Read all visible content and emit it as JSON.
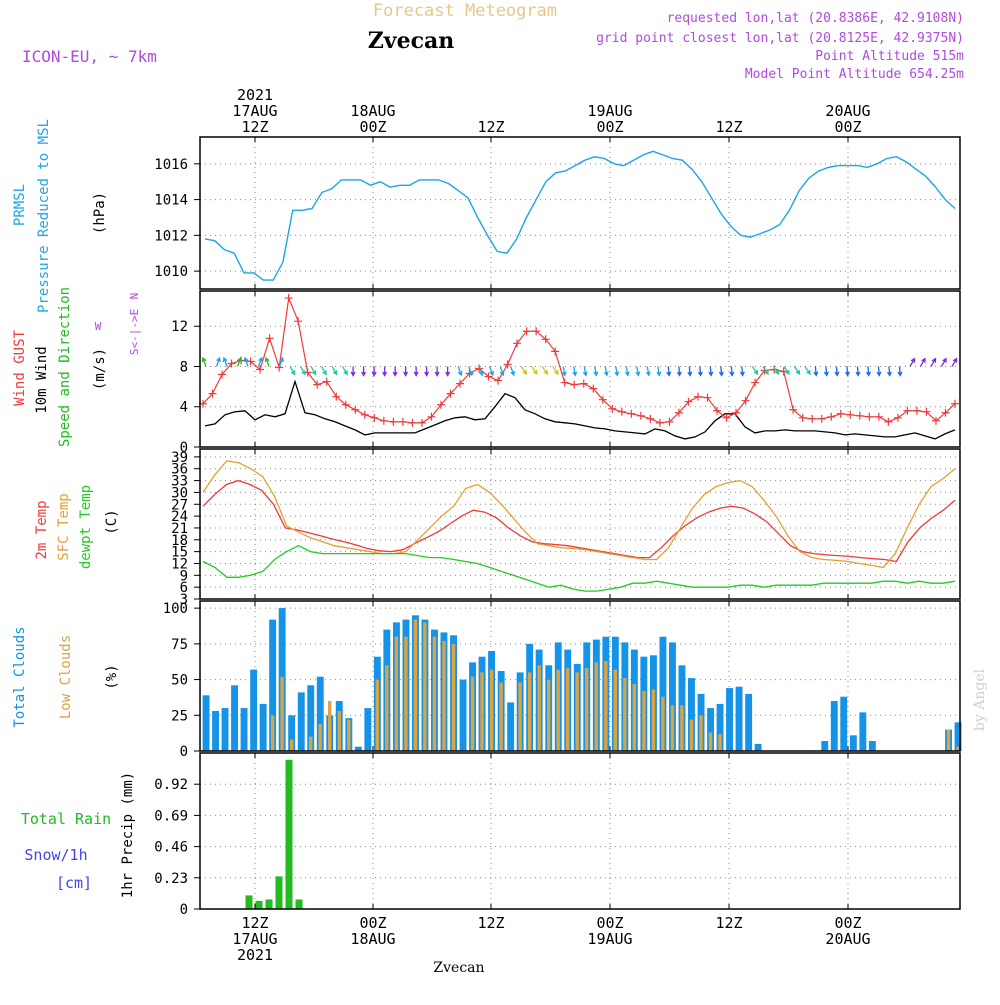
{
  "header": {
    "product": "Forecast Meteogram",
    "location": "Zvecan",
    "model": "ICON-EU, ~ 7km",
    "requested": "requested lon,lat (20.8386E, 42.9108N)",
    "gridpoint": "grid point closest lon,lat (20.8125E, 42.9375N)",
    "point_alt": "Point Altitude 515m",
    "model_alt": "Model Point Altitude 654.25m",
    "watermark": "by Angel",
    "footer_location": "Zvecan"
  },
  "colors": {
    "pressure": "#1ea4e6",
    "gust": "#ee3b3b",
    "wind": "#000000",
    "direction": "#22bb22",
    "t2m": "#ee3b3b",
    "sfc": "#e6a030",
    "dewpt": "#22cc22",
    "total_clouds": "#1493e8",
    "low_clouds": "#d9a441",
    "rain": "#22bb22",
    "snow": "#4444ee",
    "title_tan": "#e6c88a",
    "purple": "#b04ae0"
  },
  "time_axis": {
    "top_labels": [
      {
        "lines": [
          "2021",
          "17AUG",
          "12Z"
        ]
      },
      {
        "lines": [
          "18AUG",
          "00Z"
        ]
      },
      {
        "lines": [
          "12Z"
        ]
      },
      {
        "lines": [
          "19AUG",
          "00Z"
        ]
      },
      {
        "lines": [
          "12Z"
        ]
      },
      {
        "lines": [
          "20AUG",
          "00Z"
        ]
      }
    ],
    "bottom_labels": [
      {
        "lines": [
          "12Z",
          "17AUG",
          "2021"
        ]
      },
      {
        "lines": [
          "00Z",
          "18AUG"
        ]
      },
      {
        "lines": [
          "12Z"
        ]
      },
      {
        "lines": [
          "00Z",
          "19AUG"
        ]
      },
      {
        "lines": [
          "12Z"
        ]
      },
      {
        "lines": [
          "00Z",
          "20AUG"
        ]
      }
    ]
  },
  "chart_data": [
    {
      "type": "line",
      "ylabels": [
        "PRMSL",
        "Pressure Reduced to MSL",
        "(hPa)"
      ],
      "ylim": [
        1009,
        1017.5
      ],
      "yticks": [
        1010,
        1012,
        1014,
        1016
      ],
      "series": [
        {
          "values": [
            1011.8,
            1011.7,
            1011.2,
            1011.0,
            1009.9,
            1009.9,
            1009.5,
            1009.5,
            1010.5,
            1013.4,
            1013.4,
            1013.5,
            1014.4,
            1014.6,
            1015.1,
            1015.1,
            1015.1,
            1014.8,
            1015.0,
            1014.7,
            1014.8,
            1014.8,
            1015.1,
            1015.1,
            1015.1,
            1014.9,
            1014.5,
            1014.1,
            1013.0,
            1012.0,
            1011.1,
            1011.0,
            1011.8,
            1013.0,
            1014.0,
            1015.0,
            1015.5,
            1015.6,
            1015.9,
            1016.2,
            1016.4,
            1016.3,
            1016.0,
            1015.9,
            1016.2,
            1016.5,
            1016.7,
            1016.5,
            1016.3,
            1016.2,
            1015.7,
            1015.0,
            1014.1,
            1013.2,
            1012.5,
            1012.0,
            1011.9,
            1012.1,
            1012.3,
            1012.6,
            1013.4,
            1014.5,
            1015.2,
            1015.6,
            1015.8,
            1015.9,
            1015.9,
            1015.9,
            1015.8,
            1016.0,
            1016.3,
            1016.4,
            1016.1,
            1015.7,
            1015.3,
            1014.7,
            1014.0,
            1013.5
          ]
        }
      ]
    },
    {
      "type": "line",
      "ylabels": [
        "Wind GUST",
        "10m Wind",
        "Speed and Direction",
        "(m/s)"
      ],
      "compass": [
        "N",
        "S<-|->E",
        "W"
      ],
      "ylim": [
        0,
        15.5
      ],
      "yticks": [
        0,
        4,
        8,
        12
      ],
      "series": [
        {
          "name": "Wind GUST",
          "values": [
            4.3,
            5.3,
            7.2,
            8.3,
            8.6,
            8.5,
            7.7,
            10.8,
            7.9,
            14.8,
            12.5,
            7.4,
            6.2,
            6.5,
            5.0,
            4.2,
            3.7,
            3.2,
            2.9,
            2.6,
            2.5,
            2.5,
            2.4,
            2.4,
            3.0,
            4.2,
            5.3,
            6.3,
            7.3,
            7.8,
            7.0,
            6.6,
            8.2,
            10.3,
            11.5,
            11.5,
            10.7,
            9.5,
            6.4,
            6.2,
            6.3,
            5.8,
            4.7,
            3.8,
            3.5,
            3.3,
            3.1,
            2.8,
            2.4,
            2.5,
            3.4,
            4.5,
            5.0,
            4.9,
            3.6,
            2.9,
            3.4,
            4.6,
            6.4,
            7.6,
            7.7,
            7.5,
            3.7,
            2.9,
            2.8,
            2.8,
            3.0,
            3.3,
            3.2,
            3.1,
            3.0,
            3.0,
            2.5,
            2.9,
            3.6,
            3.6,
            3.5,
            2.6,
            3.4,
            4.3
          ]
        },
        {
          "name": "10m Wind",
          "values": [
            2.1,
            2.3,
            3.2,
            3.5,
            3.6,
            2.7,
            3.2,
            3.0,
            3.3,
            6.5,
            3.4,
            3.2,
            2.8,
            2.5,
            2.1,
            1.7,
            1.2,
            1.4,
            1.4,
            1.4,
            1.4,
            1.4,
            1.8,
            2.2,
            2.6,
            2.9,
            3.0,
            2.7,
            2.8,
            4.0,
            5.3,
            4.9,
            3.7,
            3.3,
            2.8,
            2.5,
            2.4,
            2.3,
            2.1,
            1.9,
            1.8,
            1.6,
            1.5,
            1.4,
            1.3,
            1.8,
            1.6,
            1.1,
            0.8,
            1.0,
            1.5,
            2.6,
            3.3,
            3.3,
            2.0,
            1.4,
            1.6,
            1.6,
            1.7,
            1.6,
            1.6,
            1.6,
            1.5,
            1.4,
            1.2,
            1.3,
            1.2,
            1.1,
            1.0,
            1.0,
            1.2,
            1.4,
            1.1,
            0.8,
            1.3,
            1.7
          ]
        }
      ]
    },
    {
      "type": "line",
      "ylabels": [
        "2m Temp",
        "SFC Temp",
        "dewpt Temp",
        "(C)"
      ],
      "ylim": [
        3,
        41
      ],
      "yticks": [
        3,
        6,
        9,
        12,
        15,
        18,
        21,
        24,
        27,
        30,
        33,
        36,
        39
      ],
      "series": [
        {
          "name": "2m Temp",
          "values": [
            26.5,
            29.5,
            32.0,
            33.0,
            32.0,
            30.5,
            27.0,
            21.0,
            20.5,
            19.8,
            19.0,
            18.2,
            17.5,
            16.7,
            15.8,
            15.2,
            15.0,
            15.5,
            17.0,
            18.5,
            20.0,
            22.0,
            24.0,
            25.5,
            25.0,
            23.5,
            21.0,
            19.0,
            17.5,
            17.0,
            16.8,
            16.5,
            16.0,
            15.5,
            15.0,
            14.5,
            14.0,
            13.5,
            13.5,
            16.0,
            19.0,
            21.5,
            23.5,
            25.0,
            26.0,
            26.5,
            26.0,
            24.5,
            22.5,
            19.5,
            16.5,
            15.0,
            14.5,
            14.2,
            14.0,
            13.8,
            13.5,
            13.2,
            13.0,
            12.5,
            17.5,
            21.0,
            23.5,
            25.5,
            28.0
          ]
        },
        {
          "name": "SFC Temp",
          "values": [
            30.0,
            34.5,
            38.0,
            37.5,
            36.0,
            34.0,
            29.0,
            21.5,
            20.0,
            18.5,
            17.5,
            16.5,
            16.0,
            15.5,
            15.0,
            14.5,
            14.5,
            15.0,
            18.0,
            21.0,
            24.0,
            26.5,
            31.0,
            32.0,
            30.0,
            27.0,
            23.5,
            20.0,
            17.0,
            16.5,
            16.0,
            15.8,
            15.5,
            15.0,
            14.5,
            14.0,
            13.5,
            13.0,
            13.0,
            16.0,
            21.0,
            26.0,
            29.5,
            31.5,
            32.5,
            33.0,
            31.5,
            28.0,
            24.0,
            19.0,
            15.0,
            13.5,
            13.0,
            12.8,
            12.5,
            12.0,
            11.5,
            11.0,
            14.5,
            21.0,
            27.0,
            31.5,
            33.5,
            36.0
          ]
        },
        {
          "name": "dewpt Temp",
          "values": [
            12.5,
            11.0,
            8.5,
            8.5,
            9.0,
            10.0,
            13.0,
            15.0,
            16.5,
            15.0,
            14.5,
            14.5,
            14.5,
            14.5,
            14.5,
            14.5,
            14.5,
            14.5,
            14.0,
            13.5,
            13.5,
            13.0,
            12.5,
            12.0,
            11.0,
            10.0,
            9.0,
            8.0,
            7.0,
            6.0,
            6.5,
            5.5,
            5.0,
            5.0,
            5.5,
            6.0,
            7.0,
            7.0,
            7.5,
            7.0,
            6.5,
            6.0,
            6.0,
            6.0,
            6.0,
            6.5,
            6.5,
            6.0,
            6.5,
            6.5,
            6.5,
            6.5,
            7.0,
            7.0,
            7.0,
            7.0,
            7.0,
            7.5,
            7.5,
            7.0,
            7.5,
            7.0,
            7.0,
            7.5
          ]
        }
      ]
    },
    {
      "type": "bar",
      "ylabels": [
        "Total Clouds",
        "Low Clouds",
        "(%)"
      ],
      "ylim": [
        0,
        105
      ],
      "yticks": [
        0,
        25,
        50,
        75,
        100
      ],
      "series": [
        {
          "name": "Total Clouds",
          "values": [
            39,
            28,
            30,
            46,
            30,
            57,
            33,
            92,
            100,
            25,
            41,
            46,
            52,
            25,
            35,
            23,
            3,
            30,
            66,
            85,
            90,
            92,
            95,
            92,
            85,
            83,
            81,
            50,
            62,
            66,
            70,
            56,
            34,
            55,
            75,
            71,
            60,
            76,
            71,
            61,
            76,
            78,
            80,
            80,
            76,
            71,
            66,
            67,
            80,
            76,
            60,
            51,
            40,
            30,
            33,
            44,
            45,
            40,
            5,
            0,
            0,
            0,
            0,
            0,
            0,
            7,
            35,
            38,
            11,
            27,
            7,
            0,
            0,
            0,
            0,
            0,
            0,
            0,
            15,
            20
          ]
        },
        {
          "name": "Low Clouds",
          "values": [
            0,
            0,
            0,
            0,
            0,
            0,
            0,
            25,
            52,
            8,
            0,
            10,
            19,
            35,
            28,
            22,
            0,
            0,
            50,
            60,
            80,
            80,
            92,
            90,
            80,
            77,
            75,
            0,
            52,
            55,
            57,
            48,
            0,
            48,
            55,
            60,
            50,
            57,
            58,
            55,
            58,
            62,
            63,
            57,
            51,
            47,
            42,
            43,
            38,
            32,
            32,
            22,
            25,
            13,
            12,
            0,
            0,
            0,
            0,
            0,
            0,
            0,
            0,
            0,
            0,
            0,
            0,
            0,
            0,
            0,
            0,
            0,
            0,
            0,
            0,
            0,
            0,
            0,
            15,
            3
          ]
        }
      ]
    },
    {
      "type": "bar",
      "ylabels": [
        "Total Rain",
        "Snow/1h",
        "[cm]",
        "1hr Precip (mm)"
      ],
      "ylim": [
        0,
        1.15
      ],
      "yticks": [
        0,
        0.23,
        0.46,
        0.69,
        0.92
      ],
      "series": [
        {
          "name": "Total Rain",
          "values": [
            0.1,
            0.06,
            0.07,
            0.24,
            1.1,
            0.07
          ]
        }
      ]
    }
  ]
}
